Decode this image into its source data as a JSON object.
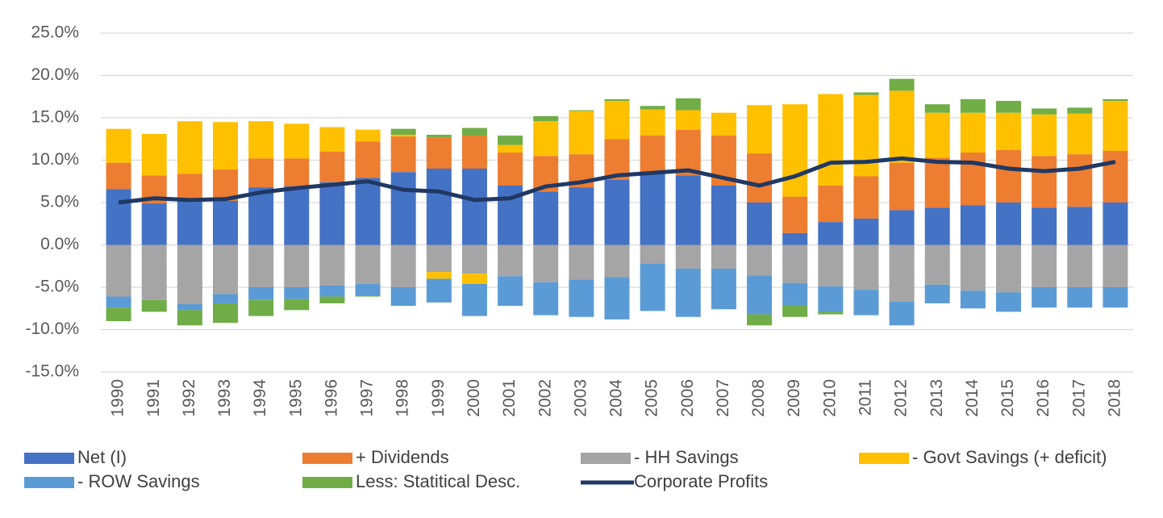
{
  "chart_data": {
    "type": "bar",
    "stacked": true,
    "categories": [
      "1990",
      "1991",
      "1992",
      "1993",
      "1994",
      "1995",
      "1996",
      "1997",
      "1998",
      "1999",
      "2000",
      "2001",
      "2002",
      "2003",
      "2004",
      "2005",
      "2006",
      "2007",
      "2008",
      "2009",
      "2010",
      "2011",
      "2012",
      "2013",
      "2014",
      "2015",
      "2016",
      "2017",
      "2018"
    ],
    "ylim": [
      -15,
      25
    ],
    "yticks": [
      {
        "value": -15,
        "label": "-15.0%"
      },
      {
        "value": -10,
        "label": "-10.0%"
      },
      {
        "value": -5,
        "label": "-5.0%"
      },
      {
        "value": 0,
        "label": "0.0%"
      },
      {
        "value": 5,
        "label": "5.0%"
      },
      {
        "value": 10,
        "label": "10.0%"
      },
      {
        "value": 15,
        "label": "15.0%"
      },
      {
        "value": 20,
        "label": "20.0%"
      },
      {
        "value": 25,
        "label": "25.0%"
      }
    ],
    "grid": true,
    "series": [
      {
        "name": "Net (I)",
        "color": "#4472c4",
        "values": [
          6.6,
          4.9,
          5.2,
          5.2,
          6.8,
          6.9,
          7.4,
          7.9,
          8.6,
          9.0,
          9.0,
          7.0,
          6.3,
          6.8,
          7.7,
          8.4,
          8.2,
          7.0,
          5.0,
          1.4,
          2.7,
          3.1,
          4.1,
          4.4,
          4.7,
          5.0,
          4.4,
          4.5,
          5.0
        ]
      },
      {
        "name": "+ Dividends",
        "color": "#ed7d31",
        "values": [
          3.1,
          3.3,
          3.2,
          3.7,
          3.4,
          3.3,
          3.6,
          4.3,
          4.2,
          3.7,
          3.9,
          3.9,
          4.2,
          3.9,
          4.8,
          4.5,
          5.4,
          5.9,
          5.8,
          4.3,
          4.3,
          5.0,
          5.6,
          5.9,
          6.2,
          6.2,
          6.1,
          6.2,
          6.1
        ]
      },
      {
        "name": "- HH Savings",
        "color": "#a5a5a5",
        "values": [
          -6.1,
          -6.5,
          -7.0,
          -5.8,
          -5.0,
          -5.0,
          -4.8,
          -4.6,
          -5.0,
          -3.2,
          -3.4,
          -3.7,
          -4.4,
          -4.1,
          -3.8,
          -2.2,
          -2.8,
          -2.8,
          -3.6,
          -4.5,
          -4.9,
          -5.3,
          -6.7,
          -4.7,
          -5.4,
          -5.6,
          -5.0,
          -5.0,
          -5.0
        ]
      },
      {
        "name": "- Govt Savings (+ deficit)",
        "color": "#ffc000",
        "values": [
          4.0,
          4.9,
          6.2,
          5.6,
          4.4,
          4.1,
          2.9,
          1.4,
          0.2,
          -0.8,
          -1.2,
          0.9,
          4.1,
          5.1,
          4.5,
          3.1,
          2.3,
          2.7,
          5.7,
          10.9,
          10.8,
          9.6,
          8.5,
          5.3,
          4.7,
          4.4,
          4.9,
          4.8,
          5.9
        ]
      },
      {
        "name": "- ROW Savings",
        "color": "#5b9bd5",
        "values": [
          -1.3,
          0,
          -0.7,
          -1.1,
          -1.5,
          -1.4,
          -1.3,
          -1.4,
          -2.2,
          -2.8,
          -3.8,
          -3.5,
          -3.9,
          -4.4,
          -5.0,
          -5.6,
          -5.7,
          -4.8,
          -4.6,
          -2.6,
          -3.0,
          -3.0,
          -2.8,
          -2.2,
          -2.1,
          -2.3,
          -2.4,
          -2.4,
          -2.4
        ]
      },
      {
        "name": "Less: Statitical Desc.",
        "color": "#70ad47",
        "values": [
          -1.6,
          -1.4,
          -1.8,
          -2.3,
          -1.9,
          -1.3,
          -0.8,
          -0.1,
          0.7,
          0.3,
          0.9,
          1.1,
          0.6,
          0.1,
          0.2,
          0.4,
          1.4,
          0,
          -1.3,
          -1.4,
          -0.3,
          0.3,
          1.4,
          1.0,
          1.6,
          1.4,
          0.7,
          0.7,
          0.2
        ]
      },
      {
        "name": "Corporate Profits",
        "color": "#203864",
        "type": "line",
        "values": [
          5.0,
          5.5,
          5.3,
          5.4,
          6.2,
          6.7,
          7.1,
          7.5,
          6.5,
          6.3,
          5.3,
          5.5,
          6.9,
          7.4,
          8.2,
          8.5,
          8.8,
          7.9,
          7.0,
          8.1,
          9.7,
          9.8,
          10.2,
          9.8,
          9.7,
          9.0,
          8.7,
          9.0,
          9.8
        ]
      }
    ]
  }
}
